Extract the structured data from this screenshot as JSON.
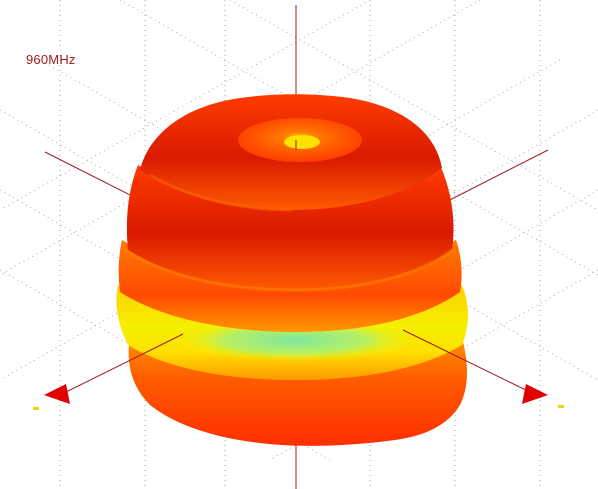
{
  "diagram": {
    "frequency_label": "960MHz",
    "type": "3D antenna radiation pattern",
    "colors": {
      "axis": "#a01c1c",
      "grid": "#9a9a9a",
      "pattern_high": "#e81e00",
      "pattern_mid": "#ff8a00",
      "pattern_low": "#ffee00",
      "pattern_min": "#7fe8a0",
      "axis_arrow": "#e00000",
      "axis_tip_marker": "#e8d800"
    }
  }
}
